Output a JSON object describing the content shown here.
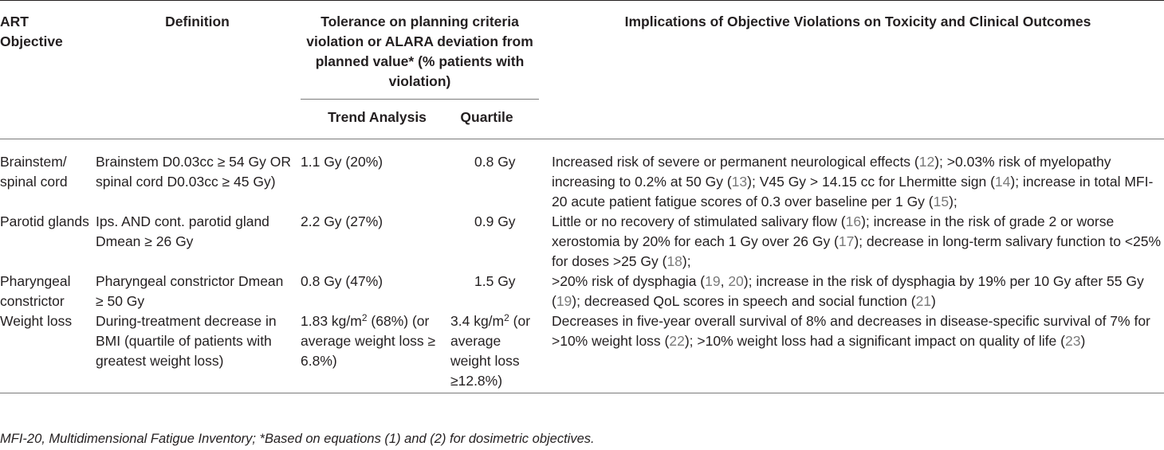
{
  "header": {
    "art_objective": "ART Objective",
    "definition": "Definition",
    "tolerance": "Tolerance on planning criteria violation or ALARA deviation from planned value* (% patients with violation)",
    "trend_analysis": "Trend Analysis",
    "quartile": "Quartile",
    "implications": "Implications of Objective Violations on Toxicity and Clinical Outcomes"
  },
  "rows": [
    {
      "objective": "Brainstem/ spinal cord",
      "definition": "Brainstem D0.03cc ≥ 54 Gy OR spinal cord D0.03cc ≥ 45 Gy)",
      "trend": "1.1 Gy (20%)",
      "quartile": "0.8 Gy",
      "implications": [
        {
          "t": "Increased risk of severe or permanent neurological effects ("
        },
        {
          "r": "12"
        },
        {
          "t": "); >0.03% risk of myelopathy increasing to 0.2% at 50 Gy ("
        },
        {
          "r": "13"
        },
        {
          "t": "); V45 Gy > 14.15 cc for Lhermitte sign ("
        },
        {
          "r": "14"
        },
        {
          "t": "); increase in total MFI-20 acute patient fatigue scores of 0.3 over baseline per 1 Gy ("
        },
        {
          "r": "15"
        },
        {
          "t": ");"
        }
      ]
    },
    {
      "objective": "Parotid glands",
      "definition": "Ips. AND cont. parotid gland Dmean ≥ 26 Gy",
      "trend": "2.2 Gy (27%)",
      "quartile": "0.9 Gy",
      "implications": [
        {
          "t": "Little or no recovery of stimulated salivary flow ("
        },
        {
          "r": "16"
        },
        {
          "t": "); increase in the risk of grade 2 or worse xerostomia by 20% for each 1 Gy over 26 Gy ("
        },
        {
          "r": "17"
        },
        {
          "t": "); decrease in long-term salivary function to <25% for doses >25 Gy ("
        },
        {
          "r": "18"
        },
        {
          "t": ");"
        }
      ]
    },
    {
      "objective": "Pharyngeal constrictor",
      "definition": "Pharyngeal constrictor Dmean ≥ 50 Gy",
      "trend": "0.8 Gy (47%)",
      "quartile": "1.5 Gy",
      "implications": [
        {
          "t": ">20% risk of dysphagia ("
        },
        {
          "r": "19"
        },
        {
          "t": ", "
        },
        {
          "r": "20"
        },
        {
          "t": "); increase in the risk of dysphagia by 19% per 10 Gy after 55 Gy ("
        },
        {
          "r": "19"
        },
        {
          "t": "); decreased QoL scores in speech and social function ("
        },
        {
          "r": "21"
        },
        {
          "t": ")"
        }
      ]
    },
    {
      "objective": "Weight loss",
      "definition": "During-treatment decrease in BMI (quartile of patients with greatest weight loss)",
      "trend_pre": "1.83 kg/m",
      "trend_sup": "2",
      "trend_post": " (68%) (or average weight loss ≥ 6.8%)",
      "quartile_pre": "3.4 kg/m",
      "quartile_sup": "2",
      "quartile_post": " (or average weight loss ≥12.8%)",
      "implications": [
        {
          "t": "Decreases in five-year overall survival of 8% and decreases in disease-specific survival of 7% for >10% weight loss ("
        },
        {
          "r": "22"
        },
        {
          "t": "); >10% weight loss had a significant impact on quality of life ("
        },
        {
          "r": "23"
        },
        {
          "t": ")"
        }
      ]
    }
  ],
  "footnote": "MFI-20, Multidimensional Fatigue Inventory; *Based on equations (1) and (2) for dosimetric objectives.",
  "colors": {
    "text": "#231f20",
    "reference": "#7a7a7a",
    "rule": "#7a7a7a"
  }
}
